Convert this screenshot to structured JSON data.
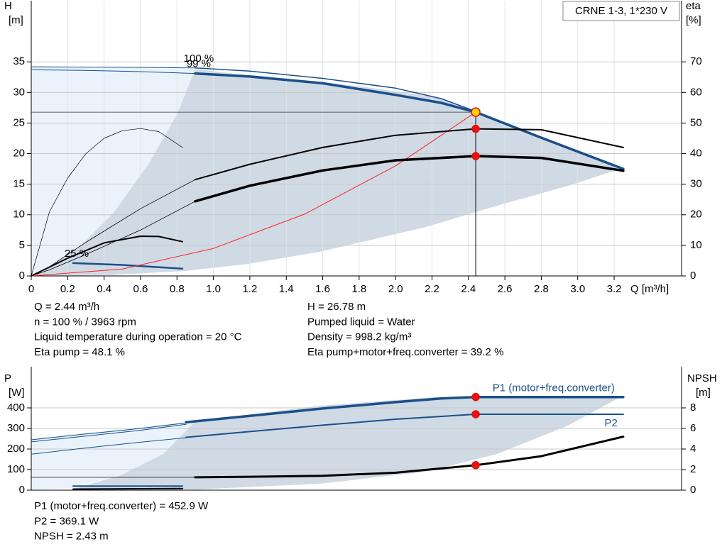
{
  "chart_data": [
    {
      "type": "line",
      "title": "CRNE 1-3, 1*230 V",
      "ylabel": "H",
      "yunit": "[m]",
      "y2label": "eta",
      "y2unit": "[%]",
      "xlabel": "Q [m³/h]",
      "xlim": [
        0,
        3.57
      ],
      "ylim": [
        0,
        45
      ],
      "y2lim": [
        0,
        90
      ],
      "grid": true,
      "xticks": [
        0,
        0.2,
        0.4,
        0.6,
        0.8,
        {
          "value": 1,
          "label": "1.0"
        },
        1.2,
        1.4,
        1.6,
        1.8,
        {
          "value": 2,
          "label": "2.0"
        },
        2.2,
        2.4,
        2.6,
        2.8,
        {
          "value": 3,
          "label": "3.0"
        },
        3.2
      ],
      "yticks": [
        0,
        5,
        10,
        15,
        20,
        25,
        30,
        35
      ],
      "y2ticks": [
        0,
        10,
        20,
        30,
        40,
        50,
        60,
        70
      ],
      "series": [
        {
          "color": "#1b4f8a",
          "width": 1,
          "x": [
            0,
            0.3,
            0.6,
            0.9
          ],
          "values": [
            34.2,
            34.15,
            34.1,
            34.0
          ]
        },
        {
          "color": "#1b4f8a",
          "width": 1,
          "x": [
            0,
            0.3,
            0.6,
            0.9
          ],
          "values": [
            33.7,
            33.6,
            33.4,
            33.1
          ]
        },
        {
          "label": "100 %",
          "label_pos": "start",
          "color": "#1b4f8a",
          "width": 1.5,
          "x": [
            0.9,
            1.2,
            1.6,
            2.0,
            2.25,
            2.44,
            2.8,
            3.25
          ],
          "values": [
            34.0,
            33.5,
            32.3,
            30.7,
            29.0,
            26.9,
            22.6,
            17.6
          ]
        },
        {
          "label": "99 %",
          "label_pos": "start",
          "color": "#1b4f8a",
          "width": 3.5,
          "x": [
            0.9,
            1.2,
            1.6,
            2.0,
            2.25,
            2.44,
            2.8,
            3.25
          ],
          "values": [
            33.1,
            32.6,
            31.5,
            29.6,
            28.3,
            26.78,
            22.6,
            17.5
          ]
        },
        {
          "label": "25 %",
          "label_pos": "start",
          "color": "#1b4f8a",
          "width": 2.5,
          "x": [
            0.23,
            0.5,
            0.83
          ],
          "values": [
            2.1,
            1.8,
            1.2
          ]
        },
        {
          "color": "#ff2020",
          "width": 1,
          "x": [
            0,
            0.5,
            1,
            1.5,
            2,
            2.44
          ],
          "values": [
            0,
            1.12,
            4.5,
            10.1,
            18,
            26.78
          ]
        },
        {
          "axis": "y2",
          "color": "#000000",
          "width": 0.8,
          "x": [
            0,
            0.1,
            0.3,
            0.6,
            0.9
          ],
          "values": [
            0,
            3,
            11,
            22,
            31.5
          ]
        },
        {
          "axis": "y2",
          "color": "#000000",
          "width": 2,
          "x": [
            0.9,
            1.2,
            1.6,
            2.0,
            2.44,
            2.8,
            3.25
          ],
          "values": [
            31.5,
            36.5,
            42,
            46,
            48.1,
            47.8,
            42
          ]
        },
        {
          "axis": "y2",
          "color": "#000000",
          "width": 0.8,
          "x": [
            0,
            0.1,
            0.3,
            0.6,
            0.9
          ],
          "values": [
            0,
            2,
            7,
            15,
            24.4
          ]
        },
        {
          "axis": "y2",
          "color": "#000000",
          "width": 3.5,
          "x": [
            0.9,
            1.2,
            1.6,
            2.0,
            2.44,
            2.8,
            3.25
          ],
          "values": [
            24.4,
            29.5,
            34.5,
            37.8,
            39.2,
            38.6,
            34.4
          ]
        },
        {
          "axis": "y2",
          "color": "#000000",
          "width": 0.7,
          "x": [
            0,
            0.1,
            0.2,
            0.3,
            0.4,
            0.5,
            0.6,
            0.7,
            0.83
          ],
          "values": [
            0,
            21,
            32,
            40,
            45,
            47.5,
            48.2,
            47.2,
            42
          ]
        },
        {
          "axis": "y2",
          "color": "#000000",
          "width": 2,
          "x": [
            0,
            0.2,
            0.4,
            0.6,
            0.7,
            0.83
          ],
          "values": [
            0,
            5.8,
            10.8,
            13,
            12.9,
            11.2
          ]
        }
      ],
      "markers": [
        {
          "fill": "#ffd700",
          "guides": true,
          "x": [
            2.44
          ],
          "values": [
            26.78
          ]
        },
        {
          "axis": "y2",
          "fill": "#ee1111",
          "x": [
            2.44,
            2.44
          ],
          "values": [
            48.1,
            39.2
          ]
        }
      ]
    },
    {
      "type": "line",
      "ylabel": "P",
      "yunit": "[W]",
      "y2label": "NPSH",
      "y2unit": "[m]",
      "xlim": [
        0,
        3.57
      ],
      "ylim": [
        0,
        600
      ],
      "y2lim": [
        0,
        12
      ],
      "grid": true,
      "yticks": [
        0,
        100,
        200,
        300,
        400
      ],
      "y2ticks": [
        0,
        2,
        4,
        6,
        8
      ],
      "series": [
        {
          "color": "#1b4f8a",
          "width": 1,
          "x": [
            0,
            0.3,
            0.6,
            0.85
          ],
          "values": [
            245,
            273,
            300,
            327
          ]
        },
        {
          "color": "#1b4f8a",
          "width": 1,
          "x": [
            0,
            0.3,
            0.6,
            0.85
          ],
          "values": [
            235,
            263,
            291,
            320
          ]
        },
        {
          "name": "P1 (motor+freq.converter)",
          "label_pos": "end-above",
          "color": "#1b4f8a",
          "width": 3.5,
          "x": [
            0.85,
            1.2,
            1.6,
            2.0,
            2.25,
            2.44,
            2.8,
            3.25
          ],
          "values": [
            330,
            361,
            397,
            428,
            446,
            452.9,
            452.9,
            452.9
          ]
        },
        {
          "color": "#1b4f8a",
          "width": 1,
          "x": [
            0,
            0.3,
            0.6,
            0.85
          ],
          "values": [
            175,
            205,
            233,
            255
          ]
        },
        {
          "name": "P2",
          "label_pos": "end-below",
          "color": "#1b4f8a",
          "width": 2,
          "x": [
            0.85,
            1.2,
            1.6,
            2.0,
            2.44,
            2.8,
            3.25
          ],
          "values": [
            257,
            285,
            316,
            345,
            369.1,
            369.1,
            369.1
          ]
        },
        {
          "color": "#1b4f8a",
          "width": 2,
          "x": [
            0.23,
            0.83
          ],
          "values": [
            20,
            20
          ]
        },
        {
          "axis": "y2",
          "color": "#000000",
          "width": 0.8,
          "x": [
            0,
            0.9
          ],
          "values": [
            1.25,
            1.25
          ]
        },
        {
          "axis": "y2",
          "color": "#000000",
          "width": 3,
          "x": [
            0.9,
            1.2,
            1.6,
            2.0,
            2.44,
            2.8,
            3.25
          ],
          "values": [
            1.25,
            1.3,
            1.4,
            1.7,
            2.43,
            3.3,
            5.2
          ]
        },
        {
          "axis": "y2",
          "color": "#000000",
          "width": 2,
          "x": [
            0.23,
            0.83
          ],
          "values": [
            0.1,
            0.15
          ]
        }
      ],
      "markers": [
        {
          "fill": "#ee1111",
          "x": [
            2.44,
            2.44
          ],
          "values": [
            452.9,
            369.1
          ]
        },
        {
          "axis": "y2",
          "fill": "#ee1111",
          "x": [
            2.44
          ],
          "values": [
            2.43
          ]
        }
      ]
    }
  ],
  "readouts": {
    "top_left": [
      "Q = 2.44 m³/h",
      "n = 100 % / 3963 rpm",
      "Liquid temperature during operation = 20 °C",
      "Eta pump = 48.1 %"
    ],
    "top_right": [
      "H = 26.78 m",
      "Pumped liquid = Water",
      "Density = 998.2 kg/m³",
      "Eta pump+motor+freq.converter = 39.2 %"
    ],
    "bottom": [
      "P1 (motor+freq.converter) = 452.9 W",
      "P2 = 369.1 W",
      "NPSH = 2.43 m"
    ]
  }
}
